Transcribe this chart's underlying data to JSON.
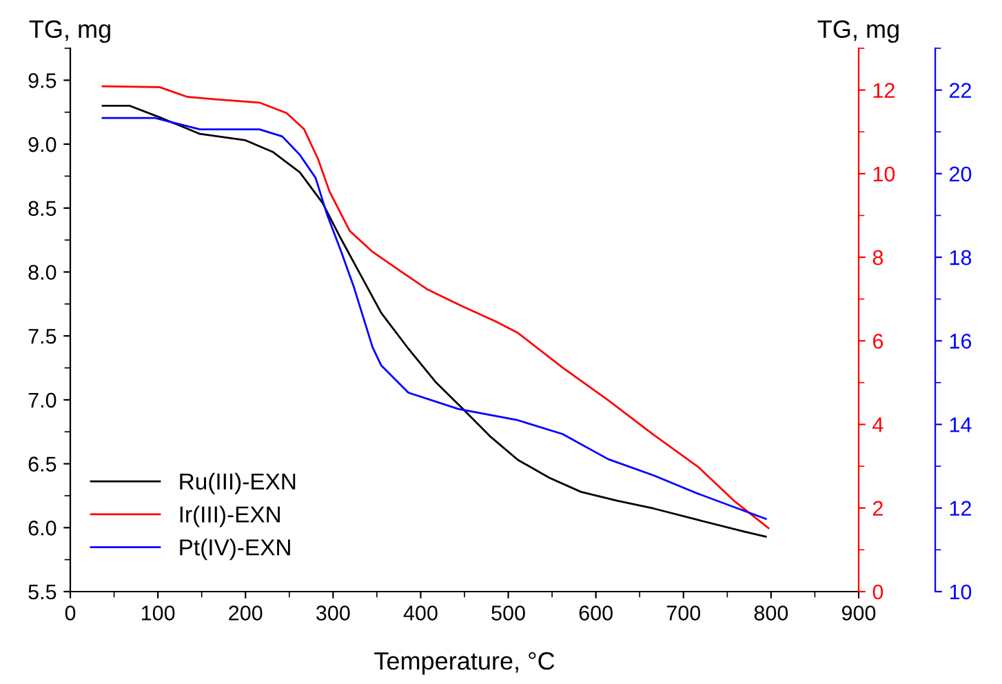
{
  "chart_data": {
    "type": "line",
    "xlabel": "Temperature, °C",
    "ylabel": "TG, mg",
    "y2label": "TG, mg",
    "xlim": [
      0,
      900
    ],
    "xticks": [
      0,
      100,
      200,
      300,
      400,
      500,
      600,
      700,
      800,
      900
    ],
    "ylim": [
      5.5,
      9.75
    ],
    "yticks": [
      5.5,
      {
        "value": 6,
        "label": "6.0"
      },
      6.5,
      {
        "value": 7,
        "label": "7.0"
      },
      7.5,
      {
        "value": 8,
        "label": "8.0"
      },
      8.5,
      {
        "value": 9,
        "label": "9.0"
      },
      9.5
    ],
    "y2lim": [
      0,
      13
    ],
    "y2ticks": [
      0,
      2,
      4,
      6,
      8,
      10,
      12
    ],
    "y3lim": [
      10,
      23
    ],
    "y3ticks": [
      10,
      12,
      14,
      16,
      18,
      20,
      22
    ],
    "legend": "bottom left",
    "grid": false,
    "marker": "none",
    "line_style": "solid",
    "series": [
      {
        "name": "Ru(III)-EXN",
        "color": "#000000",
        "x": [
          37,
          68,
          102,
          148,
          200,
          231,
          262,
          288,
          309,
          355,
          386,
          417,
          448,
          480,
          511,
          547,
          583,
          625,
          666,
          717,
          769,
          794
        ],
        "values": [
          9.3,
          9.3,
          9.21,
          9.08,
          9.03,
          8.94,
          8.78,
          8.54,
          8.26,
          7.68,
          7.4,
          7.14,
          6.93,
          6.71,
          6.53,
          6.39,
          6.28,
          6.21,
          6.15,
          6.06,
          5.97,
          5.93
        ]
      },
      {
        "name": "Ir(III)-EXN",
        "color": "#ff0000",
        "axis": "y2",
        "x": [
          37,
          102,
          133,
          164,
          216,
          247,
          267,
          283,
          296,
          319,
          345,
          376,
          407,
          448,
          485,
          511,
          562,
          614,
          666,
          717,
          759,
          797
        ],
        "values": [
          12.09,
          12.07,
          11.84,
          11.78,
          11.7,
          11.45,
          11.06,
          10.34,
          9.57,
          8.63,
          8.13,
          7.68,
          7.24,
          6.82,
          6.47,
          6.19,
          5.36,
          4.58,
          3.75,
          2.98,
          2.15,
          1.52
        ]
      },
      {
        "name": "Pt(IV)-EXN",
        "color": "#0000ff",
        "axis": "y3",
        "x": [
          37,
          97,
          148,
          216,
          242,
          262,
          280,
          293,
          309,
          324,
          345,
          355,
          386,
          443,
          511,
          562,
          614,
          666,
          717,
          794
        ],
        "values": [
          21.33,
          21.33,
          21.06,
          21.06,
          20.89,
          20.45,
          19.9,
          19.03,
          18.15,
          17.27,
          15.85,
          15.41,
          14.76,
          14.37,
          14.1,
          13.77,
          13.17,
          12.78,
          12.34,
          11.74
        ]
      }
    ]
  }
}
